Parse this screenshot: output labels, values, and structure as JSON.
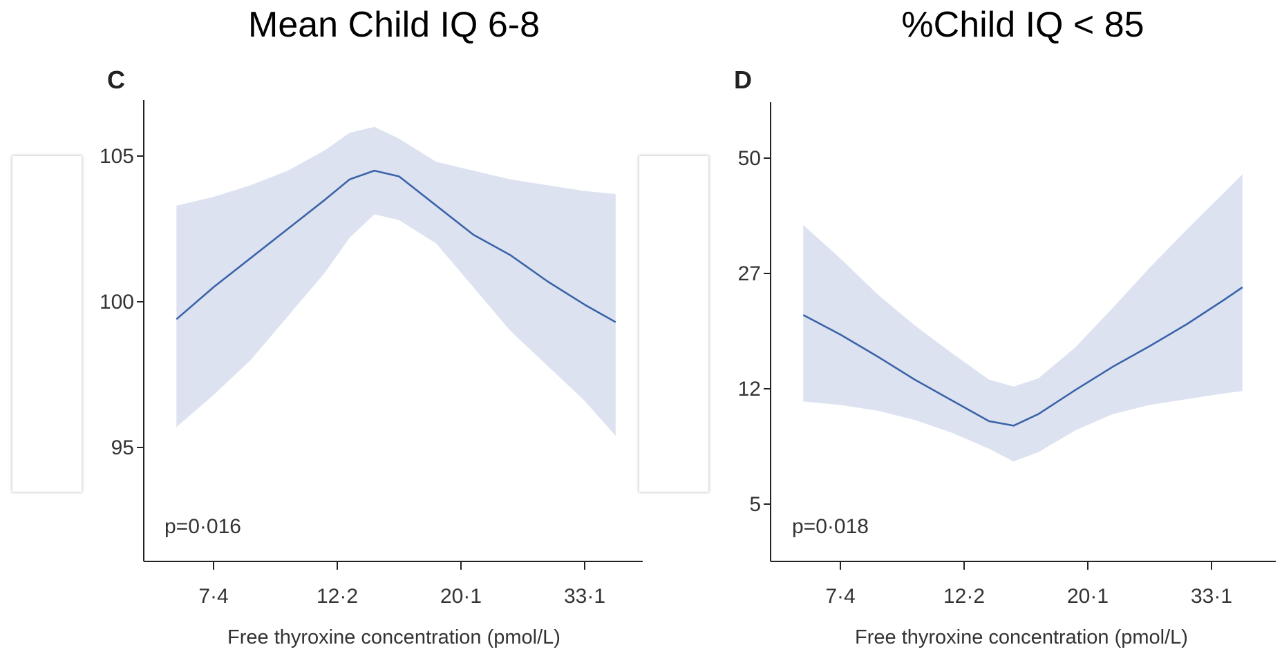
{
  "titles": {
    "left": "Mean Child IQ 6-8",
    "right": "%Child IQ < 85"
  },
  "colors": {
    "line": "#3a63a8",
    "band": "#dde2f1",
    "axis": "#222222"
  },
  "chart_data": [
    {
      "type": "line",
      "panel_label": "C",
      "title": "Mean Child IQ 6-8",
      "xlabel": "Free thyroxine concentration (pmol/L)",
      "ylabel": "",
      "x_ticks": [
        "7·4",
        "12·2",
        "20·1",
        "33·1"
      ],
      "x_tick_index": [
        0,
        1,
        2,
        3
      ],
      "xlim": [
        -0.55,
        3.45
      ],
      "y_ticks": [
        "95",
        "100",
        "105"
      ],
      "y_tick_values": [
        95,
        100,
        105
      ],
      "ylim": [
        90,
        107
      ],
      "annotation": "p=0·016",
      "series": [
        {
          "x": [
            -0.3,
            0.0,
            0.3,
            0.6,
            0.9,
            1.1,
            1.3,
            1.5,
            1.8,
            2.1,
            2.4,
            2.7,
            3.0,
            3.25
          ],
          "y": [
            99.4,
            100.5,
            101.5,
            102.5,
            103.5,
            104.2,
            104.5,
            104.3,
            103.3,
            102.3,
            101.6,
            100.7,
            99.9,
            99.3
          ],
          "lower": [
            95.7,
            96.8,
            98.0,
            99.5,
            101.0,
            102.2,
            103.0,
            102.8,
            102.0,
            100.5,
            99.0,
            97.8,
            96.6,
            95.4
          ],
          "upper": [
            103.3,
            103.6,
            104.0,
            104.5,
            105.2,
            105.8,
            106.0,
            105.6,
            104.8,
            104.5,
            104.2,
            104.0,
            103.8,
            103.7
          ]
        }
      ]
    },
    {
      "type": "line",
      "panel_label": "D",
      "title": "%Child IQ < 85",
      "xlabel": "Free thyroxine concentration (pmol/L)",
      "ylabel": "",
      "x_ticks": [
        "7·4",
        "12·2",
        "20·1",
        "33·1"
      ],
      "x_tick_index": [
        0,
        1,
        2,
        3
      ],
      "xlim": [
        -0.55,
        3.45
      ],
      "y_ticks": [
        "5",
        "12",
        "27",
        "50"
      ],
      "y_tick_values": [
        5,
        12,
        27,
        50
      ],
      "y_tick_pos": [
        0,
        1,
        2,
        3
      ],
      "ylim_pos": [
        -0.55,
        3.5
      ],
      "annotation": "p=0·018",
      "series": [
        {
          "x": [
            -0.3,
            0.0,
            0.3,
            0.6,
            0.9,
            1.2,
            1.4,
            1.6,
            1.9,
            2.2,
            2.5,
            2.8,
            3.1,
            3.25
          ],
          "y_pos": [
            1.64,
            1.47,
            1.28,
            1.08,
            0.9,
            0.72,
            0.68,
            0.78,
            0.99,
            1.19,
            1.37,
            1.56,
            1.77,
            1.88
          ],
          "lower_pos": [
            0.89,
            0.86,
            0.81,
            0.73,
            0.62,
            0.48,
            0.37,
            0.45,
            0.64,
            0.78,
            0.86,
            0.91,
            0.96,
            0.98
          ],
          "upper_pos": [
            2.42,
            2.13,
            1.82,
            1.55,
            1.31,
            1.08,
            1.02,
            1.09,
            1.36,
            1.7,
            2.05,
            2.38,
            2.7,
            2.86
          ]
        }
      ]
    }
  ]
}
